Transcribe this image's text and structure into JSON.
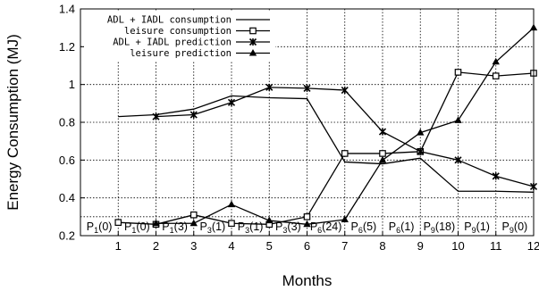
{
  "chart_data": {
    "type": "line",
    "title": "",
    "xlabel": "Months",
    "ylabel": "Energy Consumption (MJ)",
    "xlim": [
      0,
      12
    ],
    "ylim": [
      0.2,
      1.4
    ],
    "x_ticks": [
      "1",
      "2",
      "3",
      "4",
      "5",
      "6",
      "7",
      "8",
      "9",
      "10",
      "11",
      "12"
    ],
    "y_ticks": [
      "0.2",
      "0.4",
      "0.6",
      "0.8",
      "1",
      "1.2",
      "1.4"
    ],
    "grid": true,
    "legend": "top-left",
    "series": [
      {
        "name": "ADL + IADL consumption",
        "marker": "none",
        "x": [
          1,
          2,
          3,
          4,
          5,
          6,
          7,
          8,
          9,
          10,
          11,
          12
        ],
        "y": [
          0.83,
          0.84,
          0.87,
          0.94,
          0.93,
          0.925,
          0.59,
          0.58,
          0.61,
          0.435,
          0.435,
          0.43
        ]
      },
      {
        "name": "leisure consumption",
        "marker": "square",
        "x": [
          1,
          2,
          3,
          4,
          5,
          6,
          7,
          8,
          9,
          10,
          11,
          12
        ],
        "y": [
          0.27,
          0.26,
          0.31,
          0.265,
          0.26,
          0.3,
          0.635,
          0.635,
          0.645,
          1.065,
          1.045,
          1.06
        ]
      },
      {
        "name": "ADL + IADL prediction",
        "marker": "x",
        "x": [
          2,
          3,
          4,
          5,
          6,
          7,
          8,
          9,
          10,
          11,
          12
        ],
        "y": [
          0.83,
          0.84,
          0.905,
          0.985,
          0.98,
          0.97,
          0.75,
          0.645,
          0.6,
          0.515,
          0.46
        ]
      },
      {
        "name": "leisure prediction",
        "marker": "triangle",
        "x": [
          2,
          3,
          4,
          5,
          6,
          7,
          8,
          9,
          10,
          11,
          12
        ],
        "y": [
          0.265,
          0.265,
          0.365,
          0.28,
          0.26,
          0.285,
          0.6,
          0.745,
          0.81,
          1.12,
          1.3
        ]
      }
    ],
    "periods": [
      {
        "letter": "P",
        "sub": "1",
        "count": "0",
        "x_start": 0,
        "x_end": 1
      },
      {
        "letter": "P",
        "sub": "1",
        "count": "0",
        "x_start": 1,
        "x_end": 2
      },
      {
        "letter": "P",
        "sub": "1",
        "count": "3",
        "x_start": 2,
        "x_end": 3
      },
      {
        "letter": "P",
        "sub": "3",
        "count": "1",
        "x_start": 3,
        "x_end": 4
      },
      {
        "letter": "P",
        "sub": "3",
        "count": "1",
        "x_start": 4,
        "x_end": 5
      },
      {
        "letter": "P",
        "sub": "3",
        "count": "3",
        "x_start": 5,
        "x_end": 6
      },
      {
        "letter": "P",
        "sub": "6",
        "count": "24",
        "x_start": 6,
        "x_end": 7
      },
      {
        "letter": "P",
        "sub": "6",
        "count": "5",
        "x_start": 7,
        "x_end": 8
      },
      {
        "letter": "P",
        "sub": "6",
        "count": "1",
        "x_start": 8,
        "x_end": 9
      },
      {
        "letter": "P",
        "sub": "9",
        "count": "18",
        "x_start": 9,
        "x_end": 10
      },
      {
        "letter": "P",
        "sub": "9",
        "count": "1",
        "x_start": 10,
        "x_end": 11
      },
      {
        "letter": "P",
        "sub": "9",
        "count": "0",
        "x_start": 11,
        "x_end": 12
      }
    ]
  }
}
